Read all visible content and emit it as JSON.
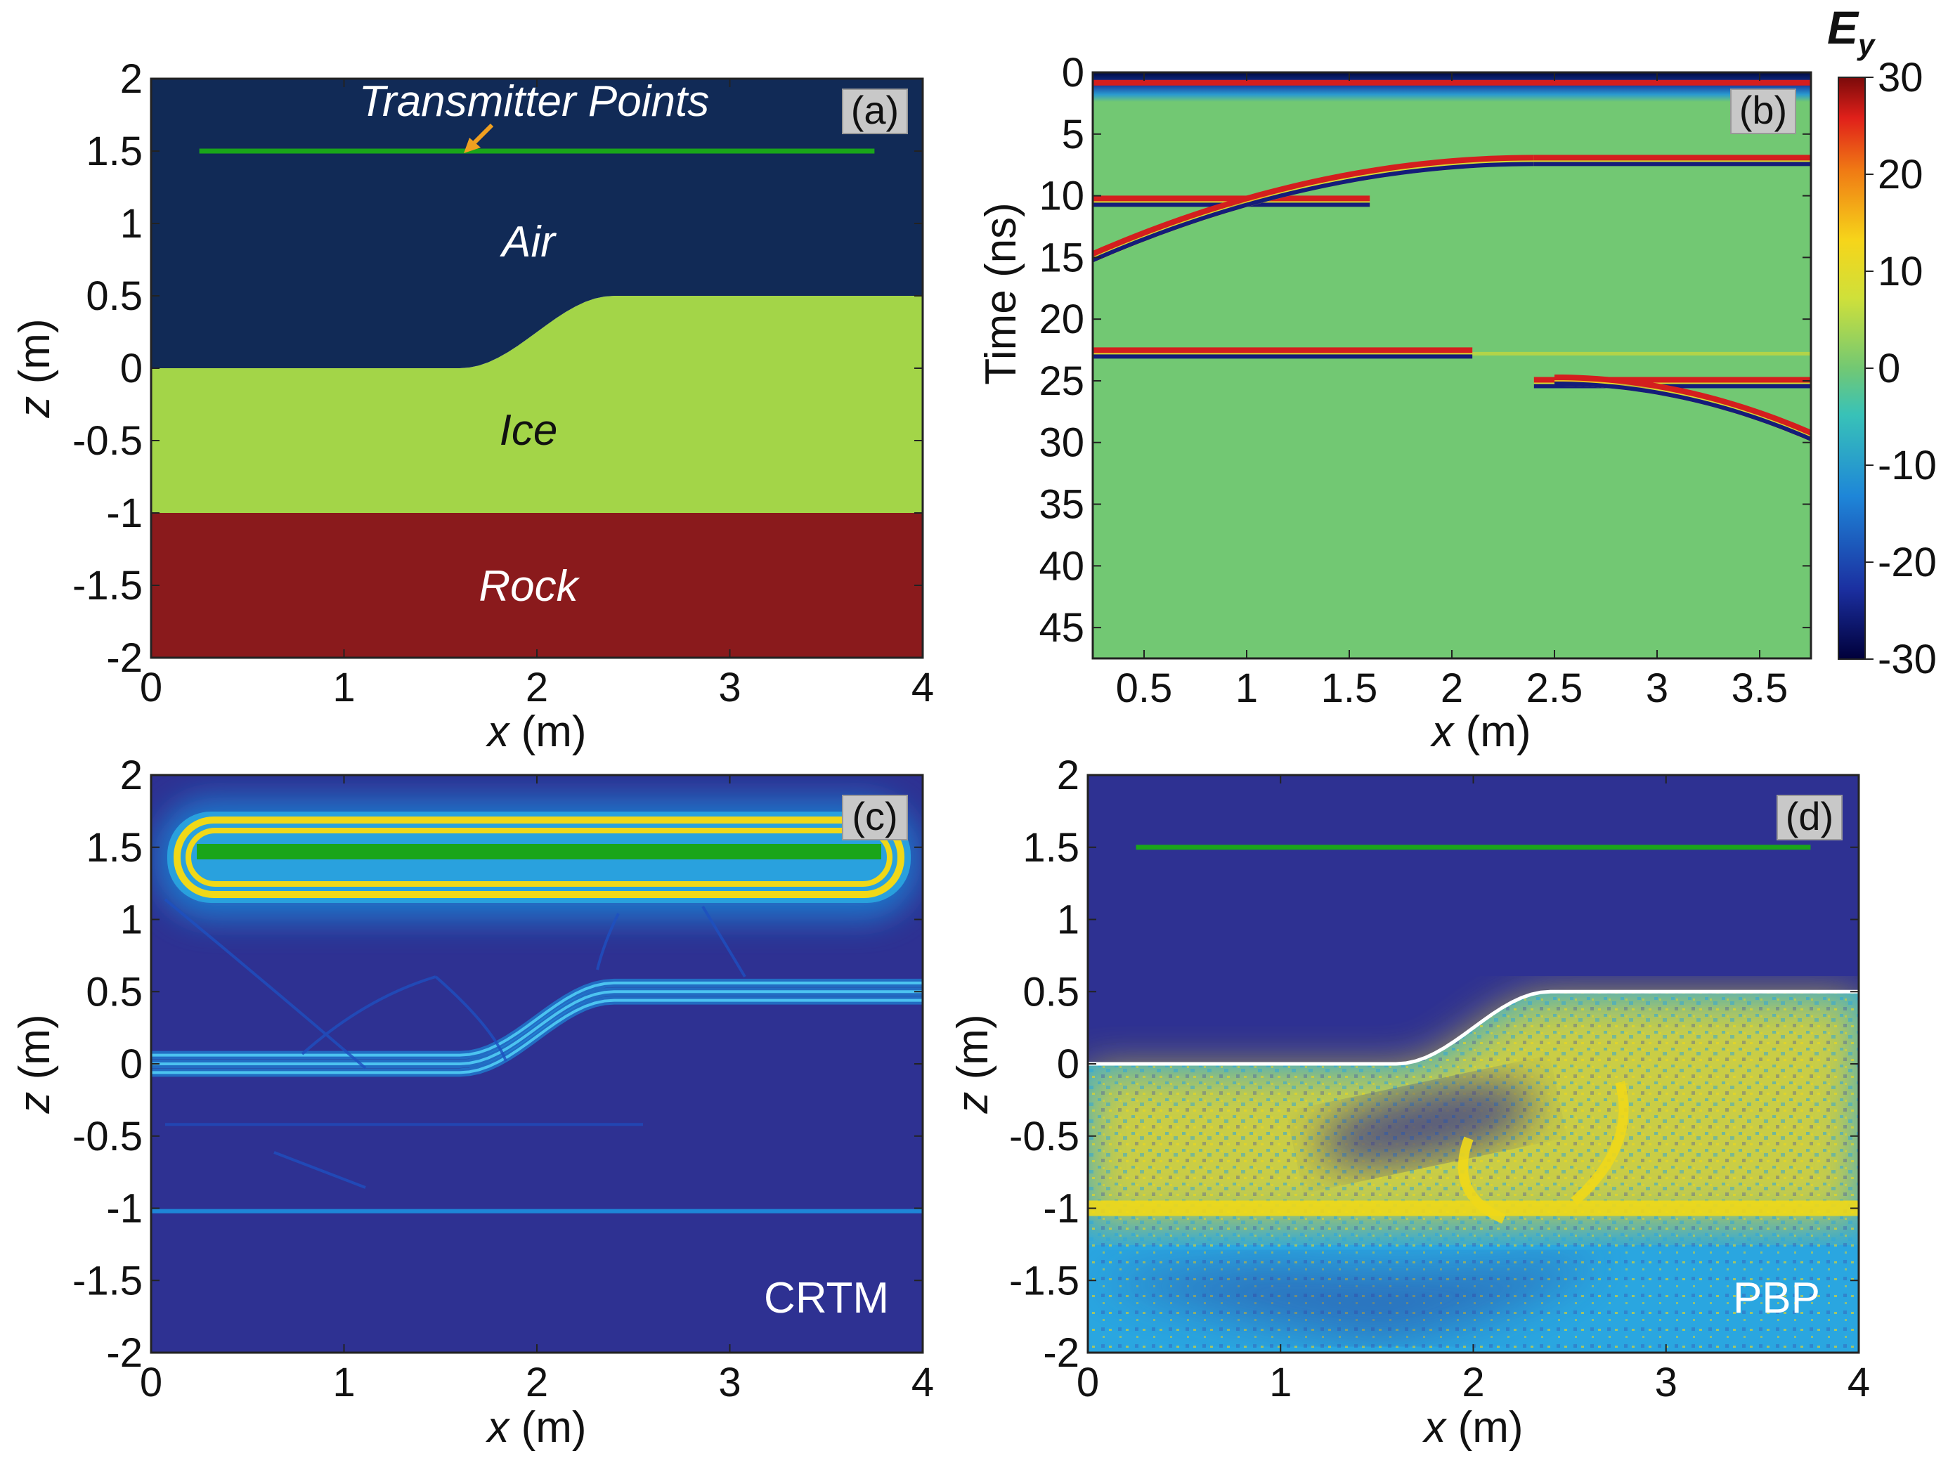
{
  "colors": {
    "air": "#112a56",
    "ice": "#a3d548",
    "rock": "#8a1a1c",
    "green_line": "#1aa51a",
    "arrow": "#f0a020",
    "bg_b": "#72c873",
    "bg_c": "#2e3192",
    "bg_d": "#2e3192",
    "wave_red": "#d41e1e",
    "wave_blue": "#141c7a",
    "wave_yellow": "#f2e020",
    "image_cyan": "#2aa6e0",
    "image_yellow": "#f0d818"
  },
  "chart_data": [
    {
      "id": "a",
      "type": "area",
      "panel_label": "(a)",
      "xlabel_var": "x",
      "xlabel_unit": " (m)",
      "ylabel_var": "z",
      "ylabel_unit": " (m)",
      "xlim": [
        0,
        4
      ],
      "ylim": [
        -2,
        2
      ],
      "xticks": [
        "0",
        "1",
        "2",
        "3",
        "4"
      ],
      "yticks": [
        "2",
        "1.5",
        "1",
        "0.5",
        "0",
        "-0.5",
        "-1",
        "-1.5",
        "-2"
      ],
      "layers": [
        {
          "name": "Air",
          "z_top": 2,
          "z_bottom": "interface"
        },
        {
          "name": "Ice",
          "z_top": "interface",
          "z_bottom": -1
        },
        {
          "name": "Rock",
          "z_top": -1,
          "z_bottom": -2
        }
      ],
      "interface": {
        "z_left": 0,
        "z_right": 0.5,
        "step_start_x": 1.6,
        "step_end_x": 2.4
      },
      "transmitter_line": {
        "z": 1.5,
        "x_start": 0.25,
        "x_end": 3.75
      },
      "annotation": "Transmitter Points",
      "layer_labels": [
        "Air",
        "Ice",
        "Rock"
      ]
    },
    {
      "id": "b",
      "type": "heatmap",
      "panel_label": "(b)",
      "xlabel_var": "x",
      "xlabel_unit": " (m)",
      "ylabel": "Time (ns)",
      "xlim": [
        0.25,
        3.75
      ],
      "ylim": [
        47.5,
        0
      ],
      "xticks": [
        "0.5",
        "1",
        "1.5",
        "2",
        "2.5",
        "3",
        "3.5"
      ],
      "yticks": [
        "0",
        "5",
        "10",
        "15",
        "20",
        "25",
        "30",
        "35",
        "40",
        "45"
      ],
      "colorbar": {
        "label_var": "E",
        "label_sub": "y",
        "range": [
          -30,
          30
        ],
        "ticks": [
          "30",
          "20",
          "10",
          "0",
          "-10",
          "-20",
          "-30"
        ]
      },
      "events": [
        {
          "name": "direct wave",
          "t": 0.5
        },
        {
          "name": "surface reflection (flat, left)",
          "x": [
            0.25,
            1.6
          ],
          "t": 10.5
        },
        {
          "name": "surface reflection (flat, right)",
          "x": [
            2.4,
            3.75
          ],
          "t": 7.2
        },
        {
          "name": "diffraction hyperbola",
          "x": [
            0.25,
            2.4
          ],
          "t": [
            15,
            7.2
          ]
        },
        {
          "name": "ice-rock reflection",
          "x": [
            0.25,
            3.75
          ],
          "t": 22.8
        },
        {
          "name": "ice-rock reflection (right)",
          "x": [
            2.4,
            3.75
          ],
          "t": 25.2
        },
        {
          "name": "ice-rock diffraction",
          "x": [
            2.5,
            3.75
          ],
          "t": [
            25,
            29.5
          ]
        }
      ]
    },
    {
      "id": "c",
      "type": "heatmap",
      "panel_label": "(c)",
      "method_label": "CRTM",
      "xlabel_var": "x",
      "xlabel_unit": " (m)",
      "ylabel_var": "z",
      "ylabel_unit": " (m)",
      "xlim": [
        0,
        4
      ],
      "ylim": [
        -2,
        2
      ],
      "xticks": [
        "0",
        "1",
        "2",
        "3",
        "4"
      ],
      "yticks": [
        "2",
        "1.5",
        "1",
        "0.5",
        "0",
        "-0.5",
        "-1",
        "-1.5",
        "-2"
      ]
    },
    {
      "id": "d",
      "type": "heatmap",
      "panel_label": "(d)",
      "method_label": "PBP",
      "xlabel_var": "x",
      "xlabel_unit": " (m)",
      "ylabel_var": "z",
      "ylabel_unit": " (m)",
      "xlim": [
        0,
        4
      ],
      "ylim": [
        -2,
        2
      ],
      "xticks": [
        "0",
        "1",
        "2",
        "3",
        "4"
      ],
      "yticks": [
        "2",
        "1.5",
        "1",
        "0.5",
        "0",
        "-0.5",
        "-1",
        "-1.5",
        "-2"
      ],
      "transmitter_line": {
        "z": 1.5,
        "x_start": 0.25,
        "x_end": 3.75
      }
    }
  ]
}
